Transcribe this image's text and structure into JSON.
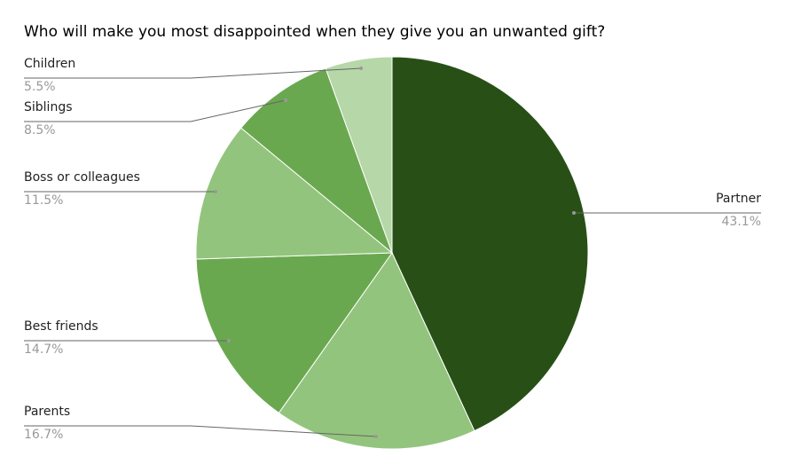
{
  "chart_data": {
    "type": "pie",
    "title": "Who will make you most disappointed when they give you an unwanted gift?",
    "categories": [
      "Partner",
      "Parents",
      "Best friends",
      "Boss or colleagues",
      "Siblings",
      "Children"
    ],
    "values": [
      43.1,
      16.7,
      14.7,
      11.5,
      8.5,
      5.5
    ],
    "value_labels": [
      "43.1%",
      "16.7%",
      "14.7%",
      "11.5%",
      "8.5%",
      "5.5%"
    ],
    "colors": [
      "#285016",
      "#93c47d",
      "#6aa84f",
      "#93c47d",
      "#6aa84f",
      "#b6d7a8"
    ]
  }
}
